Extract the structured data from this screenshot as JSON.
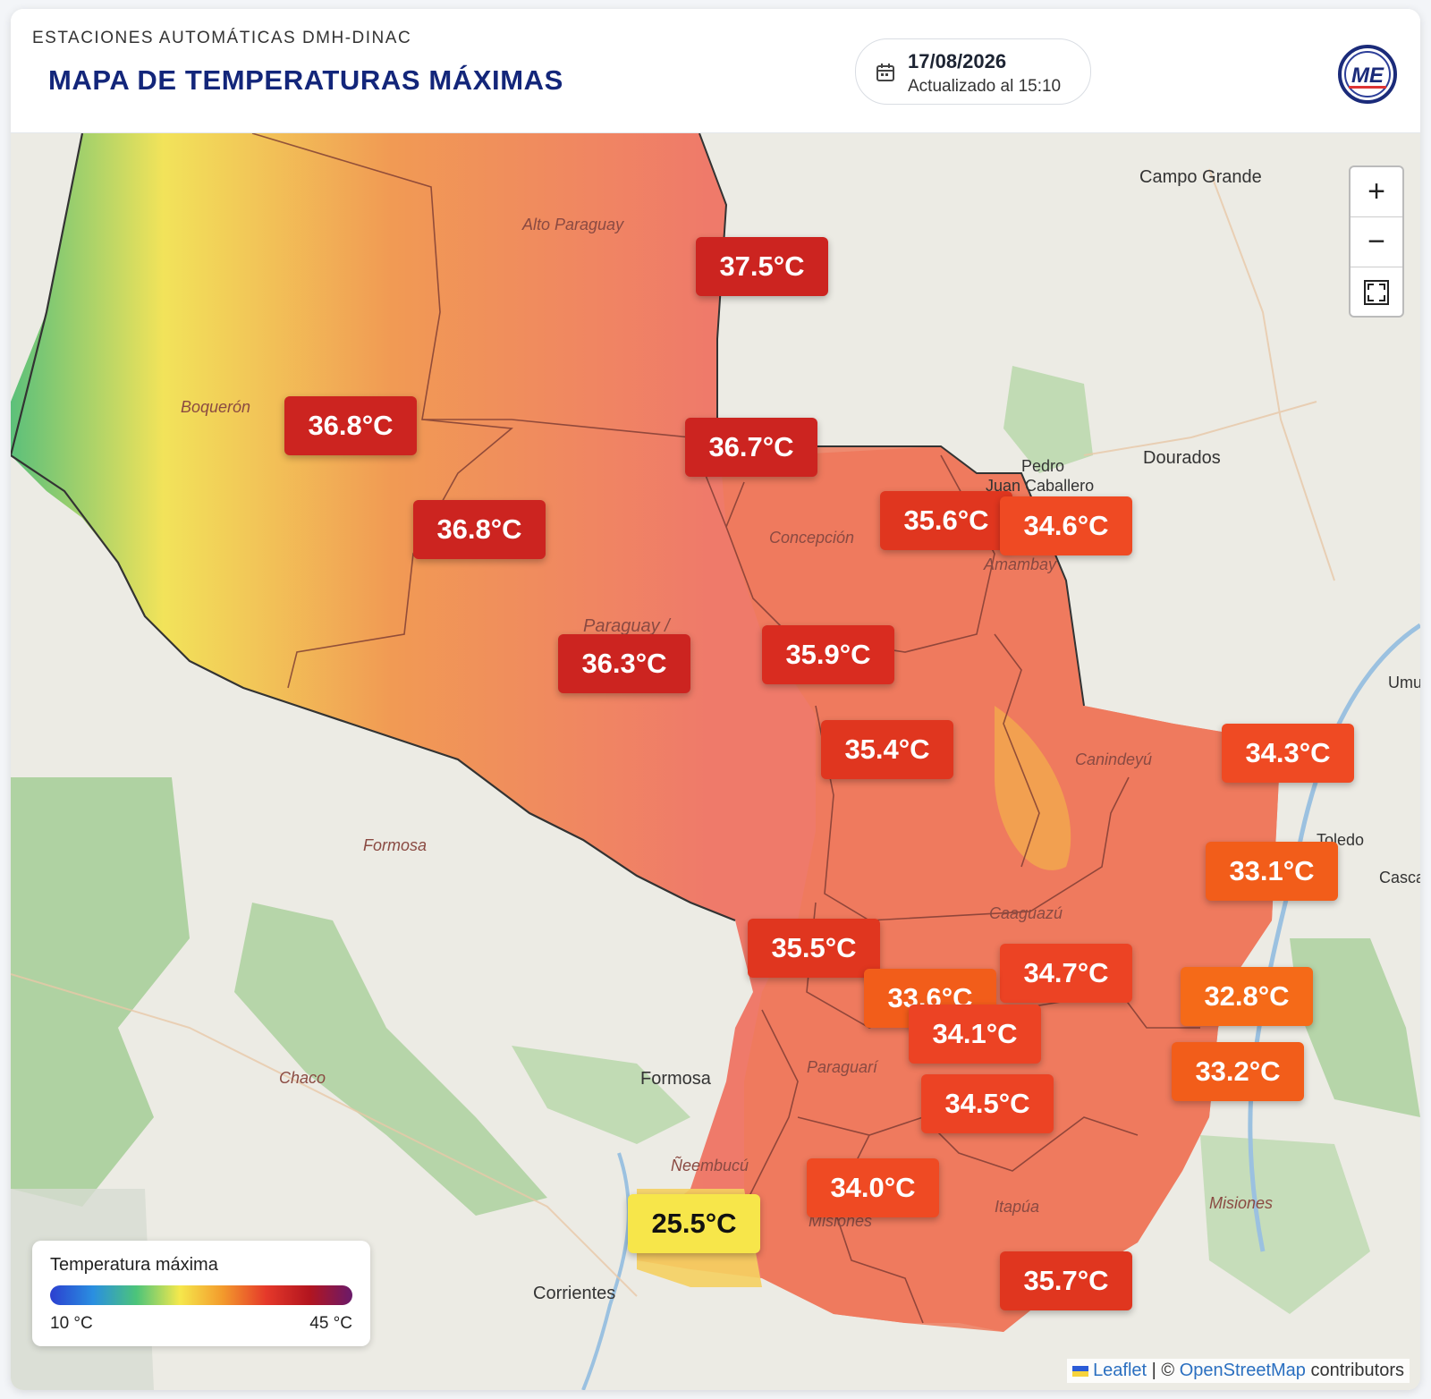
{
  "header": {
    "kicker": "ESTACIONES AUTOMÁTICAS DMH-DINAC",
    "title": "MAPA DE TEMPERATURAS MÁXIMAS",
    "date": "17/08/2026",
    "updated": "Actualizado al 15:10",
    "logo_text": "ME"
  },
  "map": {
    "places": [
      "Campo Grande",
      "Dourados",
      "Pedro",
      "Juan Caballero",
      "Formosa",
      "Corrientes",
      "Toledo",
      "Casca",
      "Umu",
      "Chaco",
      "Formosa"
    ],
    "departments": [
      "Alto Paraguay",
      "Boquerón",
      "Concepción",
      "Paraguay /",
      "Canindeyú",
      "Caaguazú",
      "Paraguarí",
      "Itapúa",
      "Misiones",
      "Ñeembucú",
      "Amambay"
    ],
    "regions": [
      "Misiones"
    ]
  },
  "controls": {
    "zoom_in": "+",
    "zoom_out": "−",
    "fullscreen_icon": "fullscreen-icon"
  },
  "stations": [
    {
      "label": "37.5°C",
      "color": "#cc2420"
    },
    {
      "label": "36.8°C",
      "color": "#cc2420"
    },
    {
      "label": "36.7°C",
      "color": "#cc2420"
    },
    {
      "label": "36.8°C",
      "color": "#cc2420"
    },
    {
      "label": "35.6°C",
      "color": "#e0361f"
    },
    {
      "label": "34.6°C",
      "color": "#ef4a23"
    },
    {
      "label": "36.3°C",
      "color": "#cc2420"
    },
    {
      "label": "35.9°C",
      "color": "#d92c20"
    },
    {
      "label": "35.4°C",
      "color": "#e0361f"
    },
    {
      "label": "34.3°C",
      "color": "#ef4a23"
    },
    {
      "label": "33.1°C",
      "color": "#f25d1a"
    },
    {
      "label": "35.5°C",
      "color": "#e0361f"
    },
    {
      "label": "34.7°C",
      "color": "#ec4324"
    },
    {
      "label": "33.6°C",
      "color": "#f25d1a"
    },
    {
      "label": "32.8°C",
      "color": "#f56a18"
    },
    {
      "label": "34.1°C",
      "color": "#ec4324"
    },
    {
      "label": "33.2°C",
      "color": "#f25d1a"
    },
    {
      "label": "34.5°C",
      "color": "#ec4324"
    },
    {
      "label": "34.0°C",
      "color": "#ef4a23"
    },
    {
      "label": "25.5°C",
      "color": "#f7e64a"
    },
    {
      "label": "35.7°C",
      "color": "#e0361f"
    }
  ],
  "legend": {
    "title": "Temperatura máxima",
    "min": "10 °C",
    "max": "45 °C"
  },
  "attribution": {
    "leaflet": "Leaflet",
    "sep": " | © ",
    "osm": "OpenStreetMap",
    "rest": " contributors"
  }
}
